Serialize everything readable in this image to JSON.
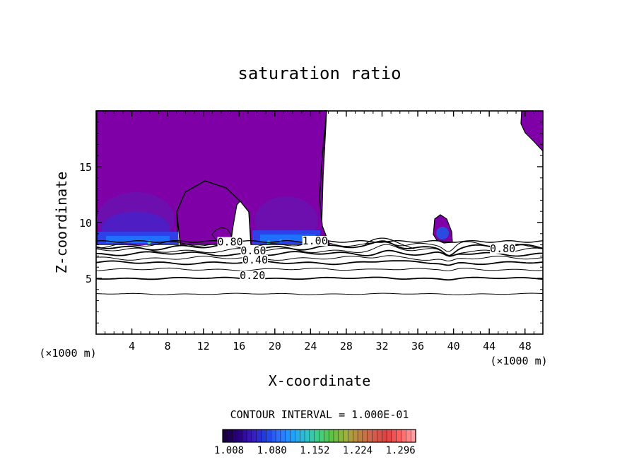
{
  "chart_data": {
    "type": "contour",
    "title": "saturation ratio",
    "xlabel": "X-coordinate",
    "ylabel": "Z-coordinate",
    "x_unit_label": "(×1000 m)",
    "y_unit_label": "(×1000 m)",
    "xlim": [
      0,
      50
    ],
    "ylim": [
      0,
      20
    ],
    "xticks": [
      4,
      8,
      12,
      16,
      20,
      24,
      28,
      32,
      36,
      40,
      44,
      48
    ],
    "xtick_labels": [
      "4",
      "8",
      "12",
      "16",
      "20",
      "24",
      "28",
      "32",
      "36",
      "40",
      "44",
      "48"
    ],
    "yticks": [
      5,
      10,
      15
    ],
    "ytick_labels": [
      "5",
      "10",
      "15"
    ],
    "contour_interval_text": "CONTOUR INTERVAL = 1.000E-01",
    "contour_labels": [
      {
        "text": "0.80",
        "x": 15.0,
        "z": 8.0
      },
      {
        "text": "0.60",
        "x": 17.6,
        "z": 7.2
      },
      {
        "text": "0.40",
        "x": 17.8,
        "z": 6.4
      },
      {
        "text": "0.20",
        "x": 17.5,
        "z": 5.0
      },
      {
        "text": "1.00",
        "x": 24.5,
        "z": 8.1
      },
      {
        "text": "0.80",
        "x": 45.5,
        "z": 7.4
      }
    ],
    "contour_levels_z": [
      {
        "level": 0.1,
        "z": 3.6
      },
      {
        "level": 0.2,
        "z": 5.0
      },
      {
        "level": 0.3,
        "z": 5.8
      },
      {
        "level": 0.4,
        "z": 6.4
      },
      {
        "level": 0.5,
        "z": 6.8
      },
      {
        "level": 0.6,
        "z": 7.2
      },
      {
        "level": 0.7,
        "z": 7.5
      },
      {
        "level": 0.8,
        "z": 7.8
      },
      {
        "level": 0.9,
        "z": 8.0
      }
    ],
    "colorbar": {
      "min": 1.008,
      "max": 1.332,
      "tick_labels": [
        "1.008",
        "1.080",
        "1.152",
        "1.224",
        "1.296"
      ],
      "colors": [
        "#1a0040",
        "#2a0080",
        "#3a1ac0",
        "#2040e0",
        "#3070ff",
        "#20a0ff",
        "#30c0d0",
        "#40d080",
        "#60c040",
        "#a0b040",
        "#c08040",
        "#d06050",
        "#e04040",
        "#ff6060",
        "#ffa0a0"
      ]
    },
    "fill_color": "#8000a8",
    "colorbar_min_color": "#1a0040"
  }
}
